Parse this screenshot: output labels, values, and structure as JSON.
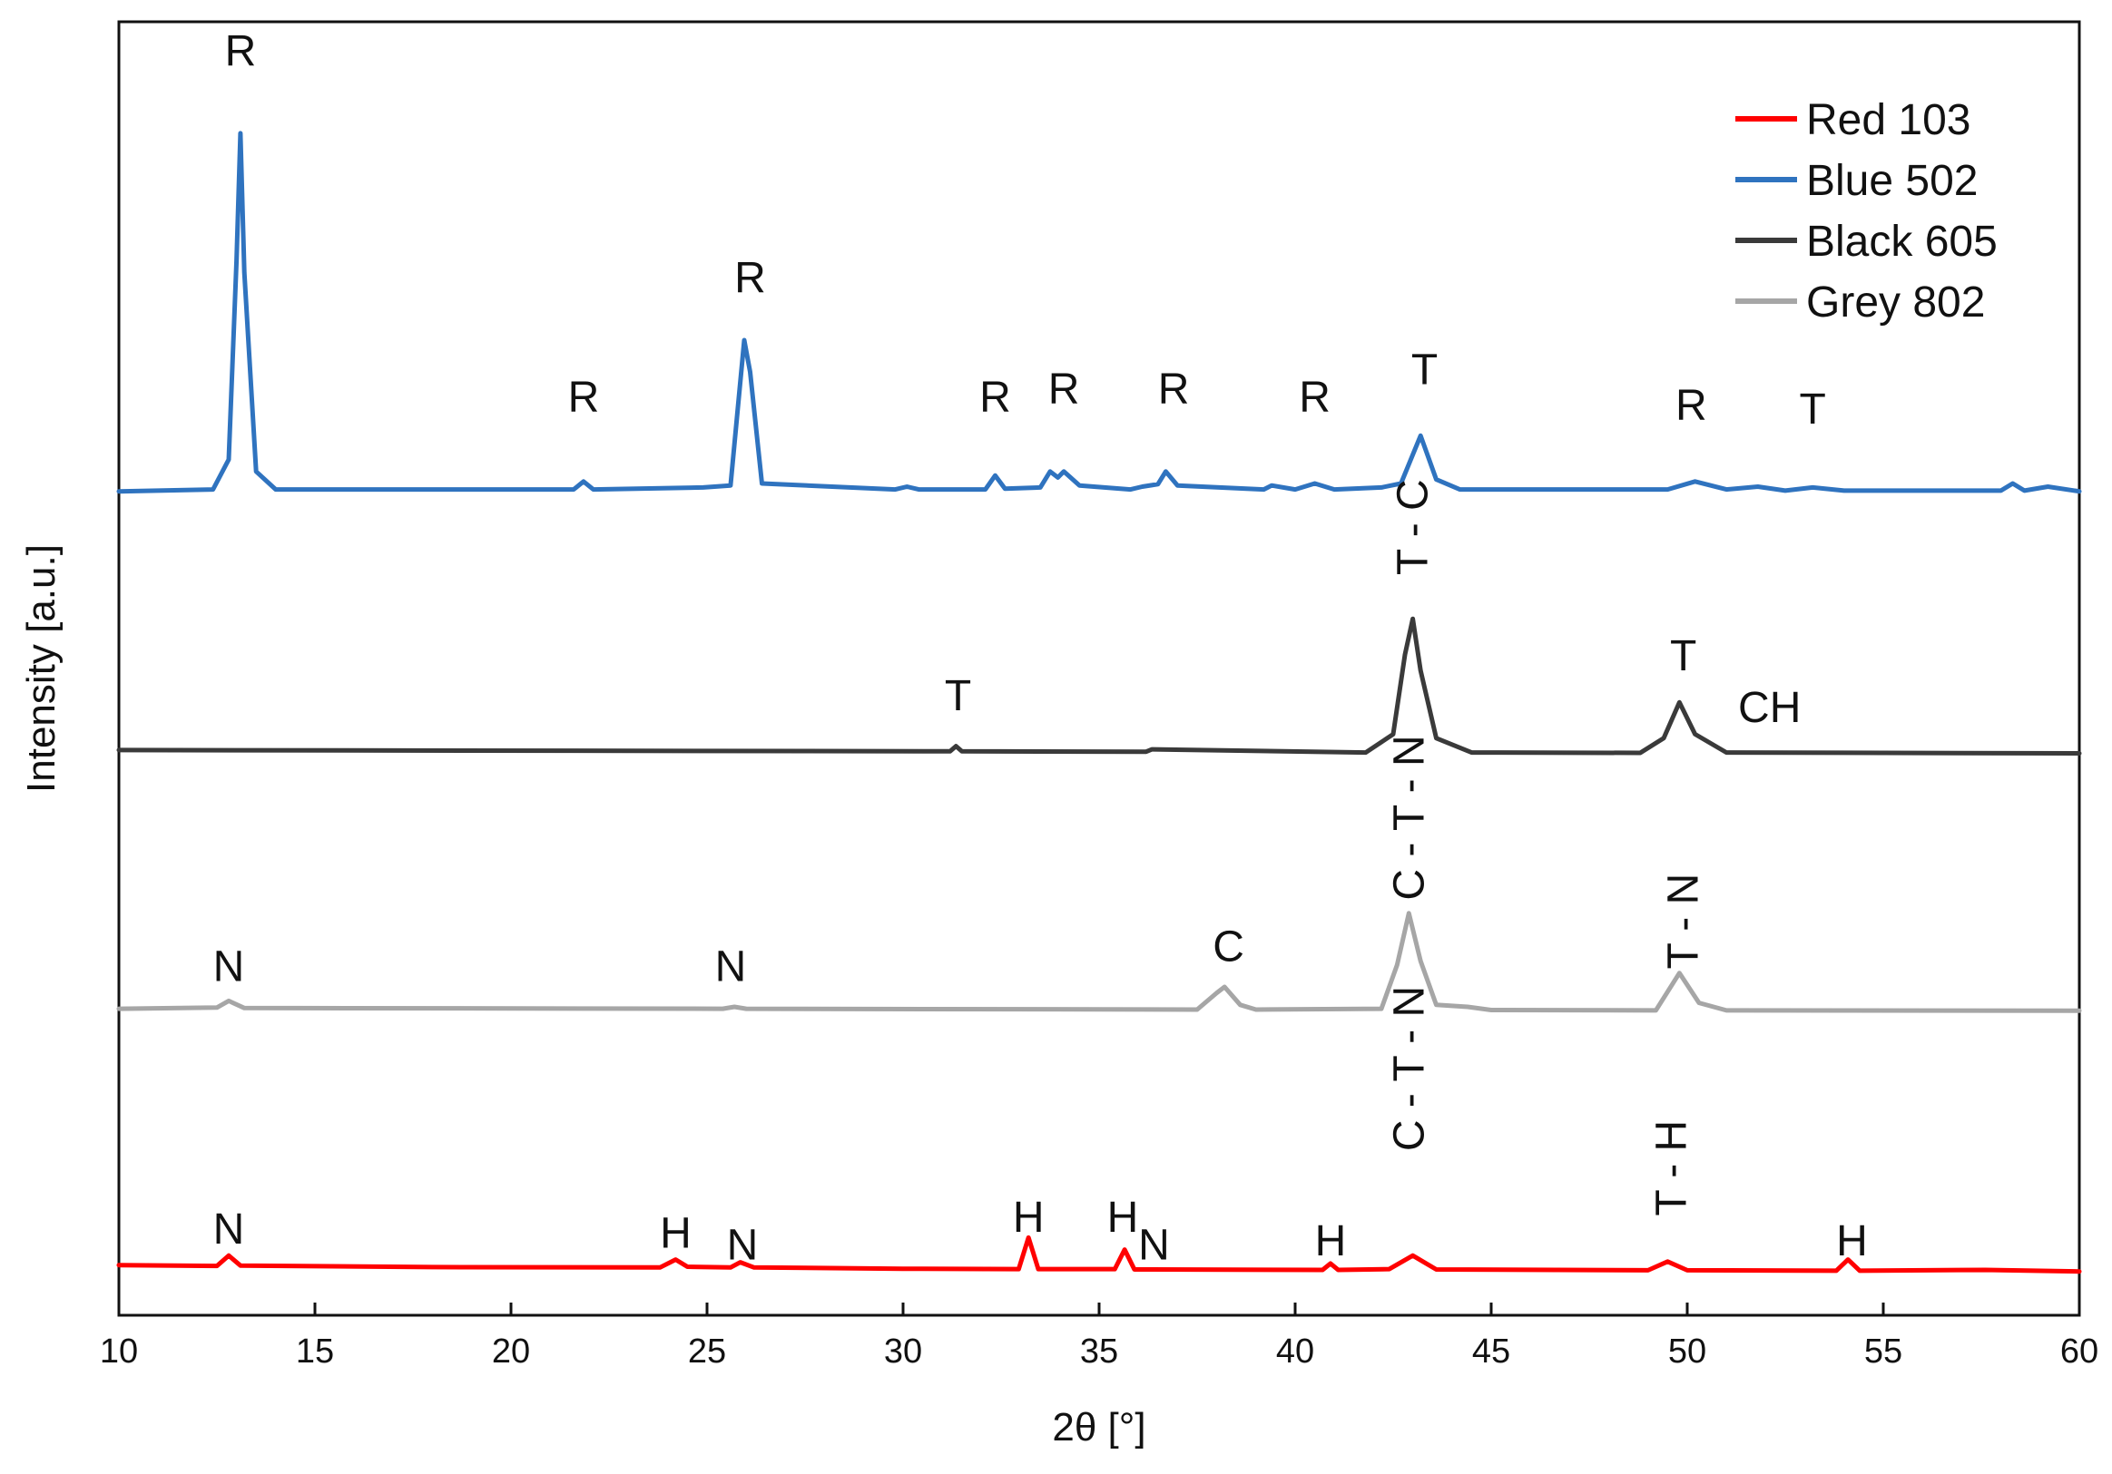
{
  "chart_data": {
    "type": "line",
    "title": "",
    "xlabel": "2θ [°]",
    "ylabel": "Intensity [a.u.]",
    "xlim": [
      10,
      60
    ],
    "x_ticks": [
      10,
      15,
      20,
      25,
      30,
      35,
      40,
      45,
      50,
      55,
      60
    ],
    "y_ticks": [],
    "grid": false,
    "legend_position": "top-right",
    "series": [
      {
        "name": "Red 103",
        "color": "#ff0000",
        "baseline": 0.0,
        "values": [
          [
            10.0,
            0.006
          ],
          [
            12.5,
            0.004
          ],
          [
            12.8,
            0.03
          ],
          [
            13.1,
            0.005
          ],
          [
            18.0,
            0.001
          ],
          [
            23.8,
            0.0
          ],
          [
            24.2,
            0.02
          ],
          [
            24.5,
            0.002
          ],
          [
            25.6,
            0.0
          ],
          [
            25.85,
            0.013
          ],
          [
            26.2,
            0.0
          ],
          [
            30.0,
            -0.003
          ],
          [
            32.95,
            -0.004
          ],
          [
            33.2,
            0.075
          ],
          [
            33.45,
            -0.004
          ],
          [
            35.4,
            -0.004
          ],
          [
            35.65,
            0.045
          ],
          [
            35.9,
            -0.005
          ],
          [
            40.7,
            -0.006
          ],
          [
            40.9,
            0.01
          ],
          [
            41.1,
            -0.006
          ],
          [
            42.4,
            -0.004
          ],
          [
            43.0,
            0.03
          ],
          [
            43.6,
            -0.005
          ],
          [
            49.0,
            -0.007
          ],
          [
            49.5,
            0.015
          ],
          [
            50.0,
            -0.007
          ],
          [
            53.8,
            -0.008
          ],
          [
            54.1,
            0.02
          ],
          [
            54.4,
            -0.008
          ],
          [
            57.6,
            -0.006
          ],
          [
            60.0,
            -0.01
          ]
        ]
      },
      {
        "name": "Blue 502",
        "color": "#2f73bf",
        "baseline": 1.95,
        "values": [
          [
            10.0,
            0.0
          ],
          [
            12.4,
            0.005
          ],
          [
            12.8,
            0.08
          ],
          [
            13.0,
            0.58
          ],
          [
            13.1,
            0.9
          ],
          [
            13.2,
            0.55
          ],
          [
            13.5,
            0.05
          ],
          [
            14.0,
            0.005
          ],
          [
            21.6,
            0.005
          ],
          [
            21.85,
            0.025
          ],
          [
            22.1,
            0.005
          ],
          [
            24.9,
            0.01
          ],
          [
            25.6,
            0.015
          ],
          [
            25.95,
            0.38
          ],
          [
            26.1,
            0.3
          ],
          [
            26.4,
            0.02
          ],
          [
            29.8,
            0.005
          ],
          [
            30.1,
            0.012
          ],
          [
            30.4,
            0.005
          ],
          [
            32.1,
            0.005
          ],
          [
            32.35,
            0.04
          ],
          [
            32.6,
            0.007
          ],
          [
            33.5,
            0.01
          ],
          [
            33.75,
            0.05
          ],
          [
            33.95,
            0.035
          ],
          [
            34.1,
            0.05
          ],
          [
            34.5,
            0.015
          ],
          [
            35.8,
            0.005
          ],
          [
            36.1,
            0.012
          ],
          [
            36.5,
            0.018
          ],
          [
            36.7,
            0.05
          ],
          [
            37.0,
            0.015
          ],
          [
            39.2,
            0.005
          ],
          [
            39.4,
            0.015
          ],
          [
            40.0,
            0.005
          ],
          [
            40.5,
            0.02
          ],
          [
            41.0,
            0.005
          ],
          [
            42.2,
            0.01
          ],
          [
            42.7,
            0.02
          ],
          [
            43.2,
            0.14
          ],
          [
            43.6,
            0.03
          ],
          [
            44.2,
            0.005
          ],
          [
            49.5,
            0.005
          ],
          [
            50.2,
            0.025
          ],
          [
            51.0,
            0.005
          ],
          [
            51.8,
            0.012
          ],
          [
            52.5,
            0.002
          ],
          [
            53.2,
            0.01
          ],
          [
            54.0,
            0.002
          ],
          [
            58.0,
            0.002
          ],
          [
            58.3,
            0.02
          ],
          [
            58.6,
            0.002
          ],
          [
            59.2,
            0.012
          ],
          [
            60.0,
            0.0
          ]
        ]
      },
      {
        "name": "Black 605",
        "color": "#3a3a3a",
        "baseline": 1.3,
        "values": [
          [
            10.0,
            0.0
          ],
          [
            31.2,
            -0.003
          ],
          [
            31.35,
            0.01
          ],
          [
            31.5,
            -0.003
          ],
          [
            36.2,
            -0.004
          ],
          [
            36.35,
            0.002
          ],
          [
            41.8,
            -0.006
          ],
          [
            42.5,
            0.04
          ],
          [
            42.8,
            0.24
          ],
          [
            43.0,
            0.33
          ],
          [
            43.2,
            0.2
          ],
          [
            43.6,
            0.03
          ],
          [
            44.5,
            -0.006
          ],
          [
            48.8,
            -0.007
          ],
          [
            49.4,
            0.03
          ],
          [
            49.8,
            0.12
          ],
          [
            50.2,
            0.04
          ],
          [
            51.0,
            -0.006
          ],
          [
            60.0,
            -0.008
          ]
        ]
      },
      {
        "name": "Grey 802",
        "color": "#a6a6a6",
        "baseline": 0.65,
        "values": [
          [
            10.0,
            0.0
          ],
          [
            12.5,
            0.003
          ],
          [
            12.8,
            0.02
          ],
          [
            13.2,
            0.002
          ],
          [
            25.4,
            0.0
          ],
          [
            25.7,
            0.005
          ],
          [
            26.0,
            0.0
          ],
          [
            37.5,
            -0.002
          ],
          [
            38.0,
            0.04
          ],
          [
            38.2,
            0.055
          ],
          [
            38.6,
            0.01
          ],
          [
            39.0,
            -0.002
          ],
          [
            42.2,
            0.0
          ],
          [
            42.6,
            0.11
          ],
          [
            42.9,
            0.24
          ],
          [
            43.2,
            0.12
          ],
          [
            43.6,
            0.01
          ],
          [
            44.4,
            0.005
          ],
          [
            45.0,
            -0.003
          ],
          [
            49.2,
            -0.004
          ],
          [
            49.8,
            0.09
          ],
          [
            50.3,
            0.015
          ],
          [
            51.0,
            -0.004
          ],
          [
            60.0,
            -0.005
          ]
        ]
      }
    ],
    "annotations": [
      {
        "text": "R",
        "x": 13.1,
        "y": 3.02,
        "rotate": false
      },
      {
        "text": "R",
        "x": 21.85,
        "y": 2.15,
        "rotate": false
      },
      {
        "text": "R",
        "x": 26.1,
        "y": 2.45,
        "rotate": false
      },
      {
        "text": "R",
        "x": 32.35,
        "y": 2.15,
        "rotate": false
      },
      {
        "text": "R",
        "x": 34.1,
        "y": 2.17,
        "rotate": false
      },
      {
        "text": "R",
        "x": 36.9,
        "y": 2.17,
        "rotate": false
      },
      {
        "text": "R",
        "x": 40.5,
        "y": 2.15,
        "rotate": false
      },
      {
        "text": "T",
        "x": 43.3,
        "y": 2.22,
        "rotate": false
      },
      {
        "text": "R",
        "x": 50.1,
        "y": 2.13,
        "rotate": false
      },
      {
        "text": "T",
        "x": 53.2,
        "y": 2.12,
        "rotate": false
      },
      {
        "text": "T - C",
        "x": 43.0,
        "y": 1.86,
        "rotate": true
      },
      {
        "text": "T",
        "x": 31.4,
        "y": 1.4,
        "rotate": false
      },
      {
        "text": "T",
        "x": 49.9,
        "y": 1.5,
        "rotate": false
      },
      {
        "text": "CH",
        "x": 52.1,
        "y": 1.37,
        "rotate": false
      },
      {
        "text": "N",
        "x": 12.8,
        "y": 0.72,
        "rotate": false
      },
      {
        "text": "N",
        "x": 25.6,
        "y": 0.72,
        "rotate": false
      },
      {
        "text": "C",
        "x": 38.3,
        "y": 0.77,
        "rotate": false
      },
      {
        "text": "C - T - N",
        "x": 42.9,
        "y": 1.13,
        "rotate": true
      },
      {
        "text": "T - N",
        "x": 49.9,
        "y": 0.87,
        "rotate": true
      },
      {
        "text": "N",
        "x": 12.8,
        "y": 0.06,
        "rotate": false
      },
      {
        "text": "H",
        "x": 24.2,
        "y": 0.05,
        "rotate": false
      },
      {
        "text": "N",
        "x": 25.9,
        "y": 0.02,
        "rotate": false
      },
      {
        "text": "H",
        "x": 33.2,
        "y": 0.09,
        "rotate": false
      },
      {
        "text": "H",
        "x": 35.6,
        "y": 0.09,
        "rotate": false
      },
      {
        "text": "N",
        "x": 36.4,
        "y": 0.02,
        "rotate": false
      },
      {
        "text": "H",
        "x": 40.9,
        "y": 0.03,
        "rotate": false
      },
      {
        "text": "C - T - N",
        "x": 42.9,
        "y": 0.5,
        "rotate": true
      },
      {
        "text": "T - H",
        "x": 49.6,
        "y": 0.25,
        "rotate": true
      },
      {
        "text": "H",
        "x": 54.2,
        "y": 0.03,
        "rotate": false
      }
    ]
  }
}
